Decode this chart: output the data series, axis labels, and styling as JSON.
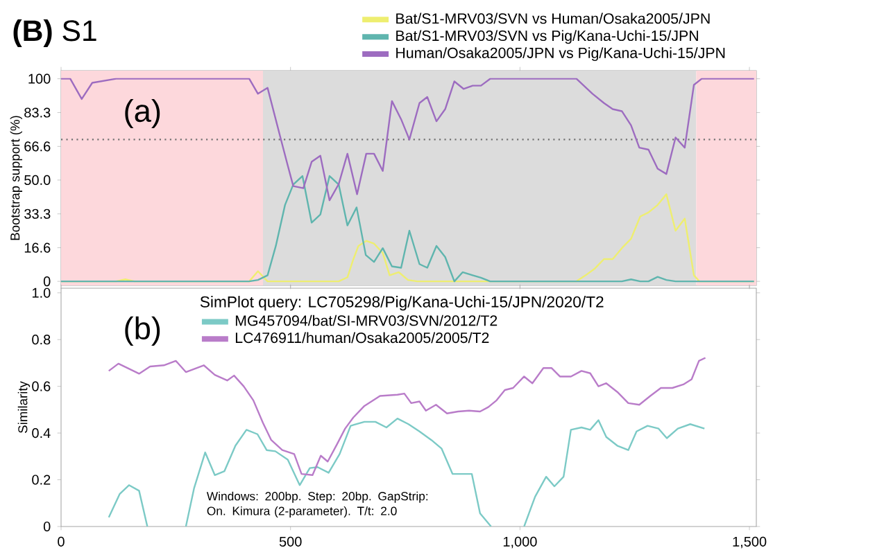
{
  "chart_data": [
    {
      "type": "line",
      "title": "**(B)** S1",
      "ylabel": "Bootstrap support (%)",
      "annotations": [
        "(a)"
      ],
      "xlim": [
        0,
        1515
      ],
      "xticks": [
        0,
        500,
        1000,
        1500
      ],
      "ylim": [
        -2,
        104
      ],
      "yticks": [
        0,
        16.6,
        33.3,
        {
          "value": 50,
          "label": "50.0"
        },
        66.6,
        83.3,
        100
      ],
      "tick_labels": "y",
      "legend": "top",
      "bands": [
        {
          "axis": "x",
          "from": 0,
          "to": 440,
          "color": "#fdd8dc"
        },
        {
          "axis": "x",
          "from": 440,
          "to": 1384,
          "color": "#dcdcdc"
        },
        {
          "axis": "x",
          "from": 1384,
          "to": 1515,
          "color": "#fdd8dc"
        }
      ],
      "ref_lines": [
        {
          "axis": "y",
          "value": 70,
          "color": "#707070",
          "line_style": "dotted"
        }
      ],
      "series": [
        {
          "name": "Bat/S1-MRV03/SVN vs Human/Osaka2005/JPN",
          "color": "#eeee70",
          "x": [
            0,
            120,
            140,
            160,
            410,
            429,
            450,
            605,
            624,
            637,
            648,
            665,
            682,
            701,
            716,
            736,
            756,
            776,
            1123,
            1143,
            1163,
            1183,
            1202,
            1222,
            1242,
            1262,
            1280,
            1300,
            1319,
            1339,
            1359,
            1379,
            1391,
            1510
          ],
          "values": [
            0,
            0,
            1,
            0,
            0,
            5,
            0,
            0,
            2,
            11,
            17.5,
            20,
            18.6,
            14,
            3,
            4.5,
            0.7,
            0,
            0,
            3,
            6.3,
            11,
            11,
            16.4,
            21,
            32,
            34,
            37.7,
            43,
            25,
            31,
            3,
            0,
            0
          ]
        },
        {
          "name": "Bat/S1-MRV03/SVN vs Pig/Kana-Uchi-15/JPN",
          "color": "#5fb5ae",
          "x": [
            0,
            410,
            429,
            450,
            468,
            488,
            506,
            526,
            546,
            565,
            585,
            605,
            624,
            644,
            664,
            682,
            701,
            721,
            741,
            759,
            781,
            798,
            818,
            837,
            857,
            875,
            897,
            915,
            935,
            1222,
            1242,
            1262,
            1280,
            1300,
            1319,
            1339,
            1510
          ],
          "values": [
            0,
            0,
            0.7,
            3,
            17.5,
            37.7,
            47.8,
            52,
            29,
            33,
            52,
            47.8,
            27.6,
            36.5,
            13,
            9.6,
            16.4,
            7.4,
            6.7,
            25,
            8.5,
            6.7,
            17.5,
            12,
            0,
            4.5,
            3,
            1.8,
            0,
            0,
            1,
            0,
            0,
            2.2,
            0.7,
            0,
            0
          ]
        },
        {
          "name": "Human/Osaka2005/JPN vs Pig/Kana-Uchi-15/JPN",
          "color": "#9d6cc0",
          "x": [
            0,
            20,
            45,
            68,
            120,
            410,
            429,
            450,
            478,
            493,
            506,
            528,
            546,
            565,
            585,
            605,
            624,
            645,
            665,
            682,
            701,
            721,
            741,
            759,
            781,
            798,
            818,
            837,
            857,
            877,
            897,
            915,
            935,
            1123,
            1158,
            1183,
            1202,
            1222,
            1242,
            1260,
            1280,
            1300,
            1319,
            1339,
            1359,
            1379,
            1396,
            1510
          ],
          "values": [
            100,
            100,
            90,
            98,
            100,
            100,
            92.6,
            95.5,
            71,
            58,
            47,
            46,
            59,
            62,
            40,
            48,
            63,
            43,
            63,
            63,
            54.5,
            89,
            80,
            70,
            88,
            91,
            79,
            85,
            98.7,
            95,
            96.6,
            96.6,
            100,
            100,
            92.6,
            88,
            85,
            84,
            77,
            66,
            65,
            55.6,
            53,
            71,
            66,
            97,
            100,
            100
          ]
        }
      ]
    },
    {
      "type": "line",
      "ylabel": "Similarity",
      "legend_title": "SimPlot query: LC705298/Pig/Kana-Uchi-15/JPN/2020/T2",
      "annotations": [
        "(b)",
        "Windows: 200bp. Step: 20bp. GapStrip: On. Kimura (2-parameter). T/t: 2.0"
      ],
      "xlim": [
        0,
        1515
      ],
      "xticks": [
        0,
        500,
        {
          "value": 1000,
          "label": "1,000"
        },
        {
          "value": 1500,
          "label": "1,500"
        }
      ],
      "ylim": [
        0,
        1.02
      ],
      "yticks": [
        0,
        0.2,
        0.4,
        0.6,
        0.8,
        {
          "value": 1,
          "label": "1.0"
        }
      ],
      "legend": "top left",
      "series": [
        {
          "name": "MG457094/bat/SI-MRV03/SVN/2012/T2",
          "color": "#7ccac6",
          "x": [
            104,
            128,
            148,
            170,
            188,
            230,
            272,
            290,
            314,
            335,
            356,
            380,
            404,
            428,
            448,
            467,
            494,
            520,
            542,
            559,
            583,
            607,
            631,
            661,
            685,
            709,
            733,
            757,
            781,
            807,
            829,
            853,
            877,
            895,
            913,
            937,
            980,
            1009,
            1033,
            1057,
            1075,
            1095,
            1111,
            1134,
            1153,
            1171,
            1188,
            1212,
            1236,
            1254,
            1278,
            1302,
            1320,
            1344,
            1371,
            1402
          ],
          "values": [
            0.039,
            0.14,
            0.177,
            0.153,
            0,
            null,
            0,
            0.165,
            0.317,
            0.22,
            0.237,
            0.346,
            0.414,
            0.395,
            0.327,
            0.322,
            0.286,
            0.177,
            0.25,
            0.254,
            0.23,
            0.31,
            0.431,
            0.448,
            0.448,
            0.424,
            0.462,
            0.438,
            0.407,
            0.37,
            0.334,
            0.225,
            0.225,
            0.225,
            0.056,
            0,
            null,
            0,
            0.128,
            0.213,
            0.172,
            0.213,
            0.414,
            0.424,
            0.414,
            0.455,
            0.383,
            0.346,
            0.327,
            0.407,
            0.431,
            0.419,
            0.378,
            0.419,
            0.438,
            0.419
          ]
        },
        {
          "name": "LC476911/human/Osaka2005/2005/T2",
          "color": "#b97cc9",
          "x": [
            104,
            125,
            170,
            194,
            224,
            250,
            272,
            311,
            335,
            362,
            377,
            398,
            419,
            440,
            458,
            482,
            508,
            524,
            548,
            566,
            581,
            601,
            619,
            637,
            661,
            695,
            733,
            748,
            763,
            781,
            795,
            817,
            841,
            865,
            889,
            913,
            931,
            949,
            967,
            985,
            1009,
            1027,
            1051,
            1069,
            1087,
            1111,
            1134,
            1153,
            1171,
            1188,
            1212,
            1236,
            1260,
            1284,
            1307,
            1332,
            1356,
            1374,
            1390,
            1404
          ],
          "values": [
            0.666,
            0.697,
            0.654,
            0.685,
            0.69,
            0.709,
            0.661,
            0.69,
            0.649,
            0.625,
            0.646,
            0.6,
            0.54,
            0.443,
            0.37,
            0.327,
            0.31,
            0.225,
            0.22,
            0.303,
            0.278,
            0.351,
            0.419,
            0.467,
            0.516,
            0.559,
            0.564,
            0.569,
            0.528,
            0.535,
            0.496,
            0.521,
            0.484,
            0.492,
            0.496,
            0.492,
            0.511,
            0.54,
            0.584,
            0.593,
            0.642,
            0.613,
            0.678,
            0.678,
            0.642,
            0.642,
            0.666,
            0.656,
            0.6,
            0.613,
            0.576,
            0.528,
            0.521,
            0.559,
            0.593,
            0.593,
            0.608,
            0.63,
            0.709,
            0.722
          ]
        }
      ]
    }
  ]
}
